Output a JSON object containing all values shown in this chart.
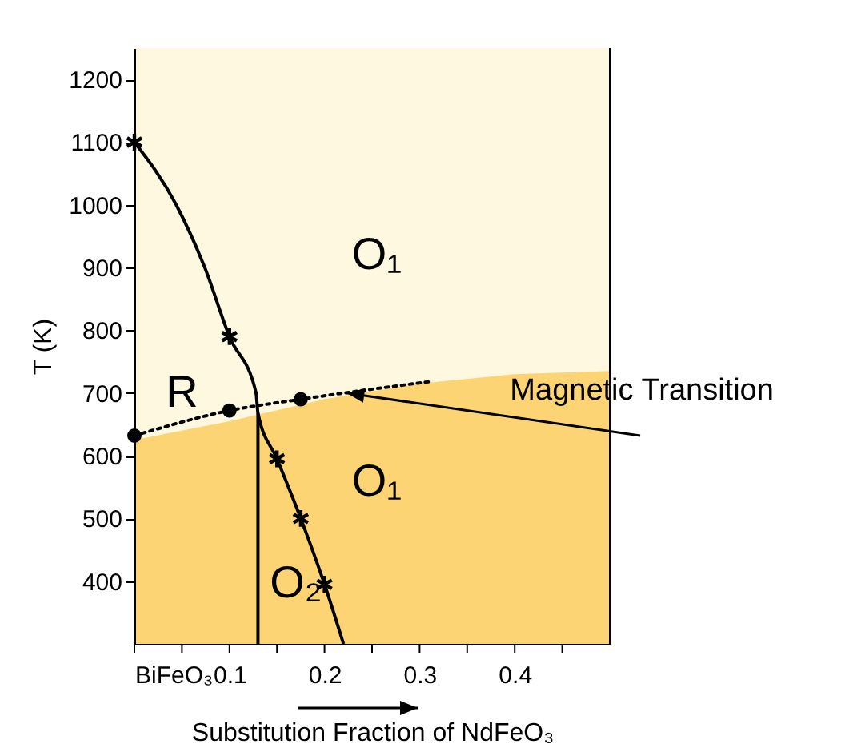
{
  "chart_data": {
    "type": "line",
    "xlabel": "Substitution Fraction of NdFeO₃",
    "ylabel": "T (K)",
    "xlim": [
      0,
      0.5
    ],
    "ylim": [
      300,
      1250
    ],
    "xticks": [
      {
        "value": 0,
        "label": "BiFeO₃"
      },
      {
        "value": 0.05,
        "label": null
      },
      0.1,
      {
        "value": 0.15,
        "label": null
      },
      0.2,
      {
        "value": 0.25,
        "label": null
      },
      0.3,
      {
        "value": 0.35,
        "label": null
      },
      0.4,
      {
        "value": 0.45,
        "label": null
      }
    ],
    "yticks": [
      400,
      500,
      600,
      700,
      800,
      900,
      1000,
      1100,
      1200
    ],
    "grid": false,
    "bands": [
      {
        "axis": "y",
        "from": 625,
        "to": 1250,
        "color": "#fef8e0"
      }
    ],
    "series": [
      {
        "type": "area",
        "color": "#fdd474",
        "x": [
          0,
          0.1,
          0.2,
          0.3,
          0.4,
          0.5
        ],
        "values": [
          625,
          655,
          690,
          715,
          730,
          735
        ]
      },
      {
        "color": "#000000",
        "marker": "none",
        "line_style": "solid",
        "x": [
          0,
          0.044,
          0.074,
          0.1,
          0.128,
          0.13,
          0.15,
          0.175,
          0.2,
          0.22
        ],
        "values": [
          1100,
          1000,
          900,
          790,
          700,
          668,
          595,
          500,
          395,
          300
        ]
      },
      {
        "type": "scatter",
        "color": "#000000",
        "marker": "cross",
        "x": [
          0,
          0.1,
          0.15,
          0.175,
          0.2
        ],
        "values": [
          1100,
          790,
          595,
          500,
          395
        ]
      },
      {
        "color": "#000000",
        "marker": "none",
        "line_style": "solid",
        "x": [
          0.13,
          0.13
        ],
        "values": [
          300,
          668
        ]
      },
      {
        "color": "#000000",
        "marker": "none",
        "line_style": "dotted",
        "x": [
          0,
          0.1,
          0.175,
          0.31
        ],
        "values": [
          632,
          672,
          690,
          718
        ]
      },
      {
        "type": "scatter",
        "color": "#000000",
        "marker": "circle",
        "x": [
          0,
          0.1,
          0.175
        ],
        "values": [
          632,
          672,
          690
        ]
      }
    ],
    "annotations": [
      "R",
      "O₁",
      "O₁",
      "O₂",
      {
        "text": "Magnetic Transition",
        "x": 0.22,
        "y": 700
      }
    ]
  }
}
